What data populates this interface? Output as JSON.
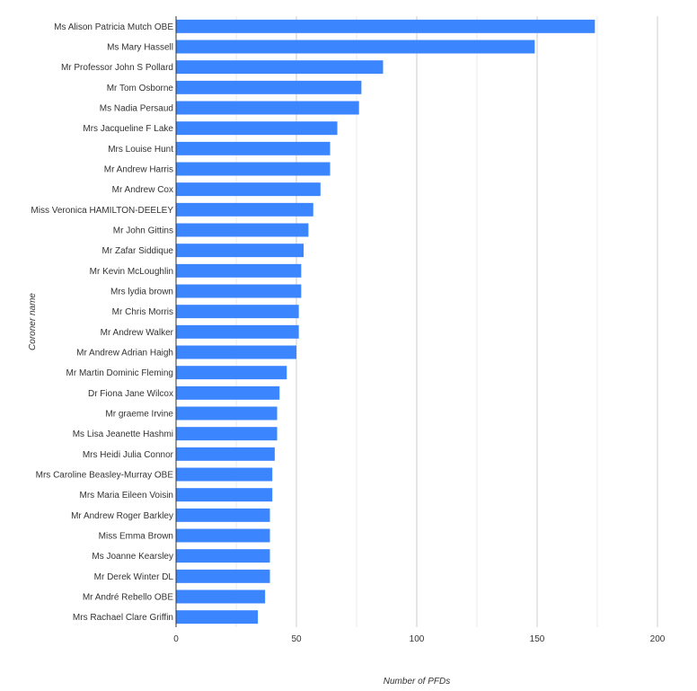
{
  "chart_data": {
    "type": "bar",
    "orientation": "horizontal",
    "xlabel": "Number of PFDs",
    "ylabel": "Coroner name",
    "xlim": [
      0,
      200
    ],
    "xticks": [
      "0",
      "50",
      "100",
      "150",
      "200"
    ],
    "grid": true,
    "color": "#3b86ff",
    "categories": [
      "Ms Alison Patricia Mutch OBE",
      "Ms Mary Hassell",
      "Mr Professor John S Pollard",
      "Mr Tom Osborne",
      "Ms Nadia Persaud",
      "Mrs Jacqueline F Lake",
      "Mrs Louise Hunt",
      "Mr Andrew Harris",
      "Mr Andrew Cox",
      "Miss Veronica HAMILTON-DEELEY",
      "Mr John Gittins",
      "Mr Zafar Siddique",
      "Mr Kevin McLoughlin",
      "Mrs lydia brown",
      "Mr Chris Morris",
      "Mr Andrew Walker",
      "Mr Andrew Adrian Haigh",
      "Mr Martin Dominic Fleming",
      "Dr Fiona Jane Wilcox",
      "Mr graeme Irvine",
      "Ms Lisa Jeanette Hashmi",
      "Mrs Heidi Julia Connor",
      "Mrs Caroline Beasley-Murray OBE",
      "Mrs Maria Eileen Voisin",
      "Mr Andrew Roger Barkley",
      "Miss Emma Brown",
      "Ms Joanne Kearsley",
      "Mr Derek Winter DL",
      "Mr André Rebello OBE",
      "Mrs Rachael Clare Griffin"
    ],
    "values": [
      174,
      149,
      86,
      77,
      76,
      67,
      64,
      64,
      60,
      57,
      55,
      53,
      52,
      52,
      51,
      51,
      50,
      46,
      43,
      42,
      42,
      41,
      40,
      40,
      39,
      39,
      39,
      39,
      37,
      34
    ]
  }
}
